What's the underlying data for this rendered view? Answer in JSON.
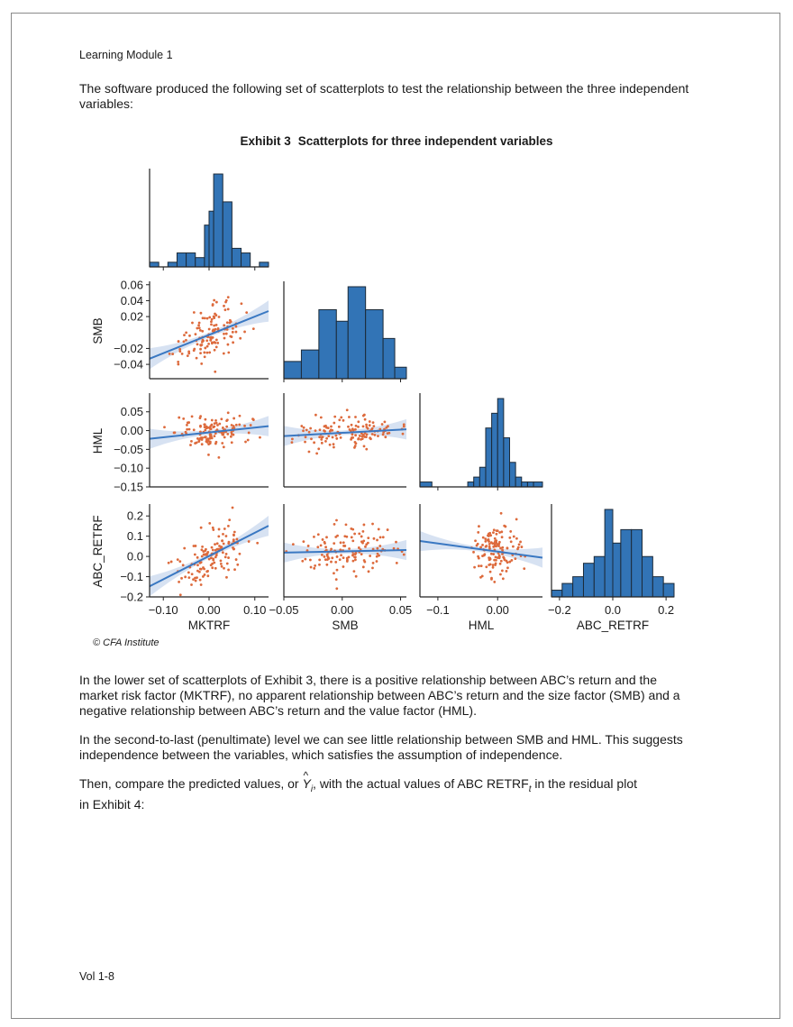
{
  "running_head": "Learning Module 1",
  "intro": "The software produced the following set of scatterplots to test the relationship between the three independent variables:",
  "exhibit": {
    "label": "Exhibit 3",
    "title": "Scatterplots for three independent variables"
  },
  "credit": "© CFA Institute",
  "para1": "In the lower set of scatterplots of Exhibit 3, there is a positive relationship between ABC’s return and the market risk factor (MKTRF), no apparent relationship between ABC’s return and the size factor (SMB) and a negative relationship between ABC’s return and the value factor (HML).",
  "para2": "In the second-to-last (penultimate) level we can see little relationship between SMB and HML. This suggests independence between the variables, which satisfies the assumption of independence.",
  "para3": {
    "pre": "Then, compare the predicted values, or ",
    "y": "Y",
    "y_sub": "i",
    "mid": ", with the actual values of ABC RETRF",
    "t_sub": "t",
    "post": " in the residual plot",
    "line2": "in Exhibit 4:"
  },
  "footer": "Vol 1-8",
  "colors": {
    "bar": "#3274b6",
    "bar_edge": "#1c2a38",
    "point": "#dd6a3c",
    "line": "#3a78c2",
    "band": "#c9d8ee"
  },
  "chart_data": {
    "type": "pairplot",
    "variables": [
      "MKTRF",
      "SMB",
      "HML",
      "ABC_RETRF"
    ],
    "xlim": {
      "MKTRF": [
        -0.13,
        0.13
      ],
      "SMB": [
        -0.05,
        0.055
      ],
      "HML": [
        -0.13,
        0.075
      ],
      "ABC_RETRF": [
        -0.23,
        0.23
      ]
    },
    "ylim": {
      "SMB": [
        -0.058,
        0.062
      ],
      "HML": [
        -0.15,
        0.095
      ],
      "ABC_RETRF": [
        -0.2,
        0.25
      ]
    },
    "xticks": {
      "MKTRF": {
        "values": [
          -0.1,
          0.0,
          0.1
        ],
        "labels": [
          "−0.10",
          "0.00",
          "0.10"
        ]
      },
      "SMB": {
        "values": [
          -0.05,
          0.0,
          0.05
        ],
        "labels": [
          "−0.05",
          "0.00",
          "0.05"
        ]
      },
      "HML": {
        "values": [
          -0.1,
          0.0
        ],
        "labels": [
          "−0.1",
          "0.00"
        ]
      },
      "ABC_RETRF": {
        "values": [
          -0.2,
          0.0,
          0.2
        ],
        "labels": [
          "−0.2",
          "0.0",
          "0.2"
        ]
      }
    },
    "yticks": {
      "SMB": {
        "values": [
          0.06,
          0.04,
          0.02,
          -0.02,
          -0.04
        ],
        "labels": [
          "0.06",
          "0.04",
          "0.02",
          "−0.02",
          "−0.04"
        ]
      },
      "HML": {
        "values": [
          0.05,
          0.0,
          -0.05,
          -0.1,
          -0.15
        ],
        "labels": [
          "0.05",
          "0.00",
          "−0.05",
          "−0.10",
          "−0.15"
        ]
      },
      "ABC_RETRF": {
        "values": [
          0.2,
          0.1,
          0.0,
          -0.1,
          -0.2
        ],
        "labels": [
          "0.2",
          "0.1",
          "0.0",
          "−0.1",
          "−0.2"
        ]
      }
    },
    "histograms": [
      {
        "variable": "MKTRF",
        "bin_edges": [
          -0.13,
          -0.11,
          -0.09,
          -0.07,
          -0.05,
          -0.03,
          -0.01,
          0.0,
          0.01,
          0.03,
          0.05,
          0.07,
          0.09,
          0.11,
          0.13
        ],
        "counts": [
          1,
          0,
          1,
          3,
          3,
          2,
          9,
          12,
          20,
          14,
          4,
          3,
          0,
          1,
          1
        ]
      },
      {
        "variable": "SMB",
        "bin_edges": [
          -0.05,
          -0.035,
          -0.02,
          -0.005,
          0.005,
          0.02,
          0.035,
          0.045,
          0.055
        ],
        "counts": [
          3,
          5,
          12,
          10,
          16,
          12,
          7,
          2,
          3
        ]
      },
      {
        "variable": "HML",
        "bin_edges": [
          -0.13,
          -0.11,
          -0.1,
          -0.09,
          -0.08,
          -0.07,
          -0.06,
          -0.05,
          -0.04,
          -0.03,
          -0.02,
          -0.01,
          0.0,
          0.01,
          0.02,
          0.03,
          0.04,
          0.05,
          0.06,
          0.075
        ],
        "counts": [
          1,
          0,
          0,
          0,
          0,
          0,
          0,
          1,
          2,
          4,
          12,
          15,
          18,
          10,
          5,
          2,
          1,
          1,
          1
        ]
      },
      {
        "variable": "ABC_RETRF",
        "bin_edges": [
          -0.23,
          -0.19,
          -0.15,
          -0.11,
          -0.07,
          -0.03,
          0.0,
          0.03,
          0.07,
          0.11,
          0.15,
          0.19,
          0.23
        ],
        "counts": [
          1,
          2,
          3,
          5,
          6,
          13,
          8,
          10,
          10,
          6,
          3,
          2
        ]
      }
    ],
    "regressions": [
      {
        "x": "MKTRF",
        "y": "SMB",
        "slope": 0.23,
        "intercept": -0.003
      },
      {
        "x": "MKTRF",
        "y": "HML",
        "slope": 0.13,
        "intercept": -0.005
      },
      {
        "x": "SMB",
        "y": "HML",
        "slope": 0.17,
        "intercept": -0.006
      },
      {
        "x": "MKTRF",
        "y": "ABC_RETRF",
        "slope": 1.15,
        "intercept": 0.002
      },
      {
        "x": "SMB",
        "y": "ABC_RETRF",
        "slope": 0.12,
        "intercept": 0.025
      },
      {
        "x": "HML",
        "y": "ABC_RETRF",
        "slope": -0.4,
        "intercept": 0.024
      }
    ]
  }
}
